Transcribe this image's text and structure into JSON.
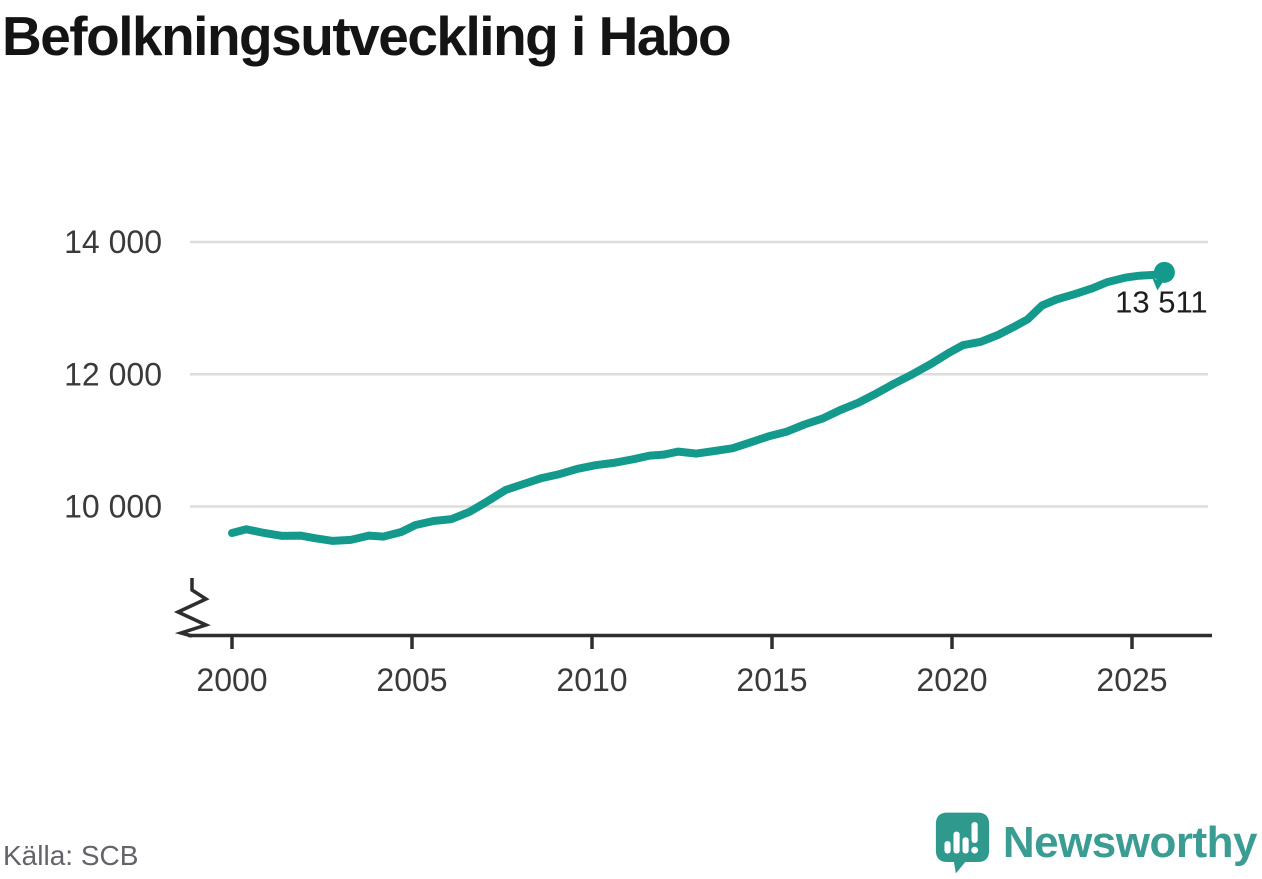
{
  "header": {
    "title": "Befolkningsutveckling i Habo"
  },
  "chart_data": {
    "type": "line",
    "title": "Befolkningsutveckling i Habo",
    "xlabel": "",
    "ylabel": "",
    "x_range": [
      1999.6,
      2027
    ],
    "ylim": [
      9300,
      14350
    ],
    "axis_break": true,
    "grid": "horizontal",
    "legend_position": "none",
    "yticks": [
      {
        "value": 14000,
        "label": "14 000"
      },
      {
        "value": 12000,
        "label": "12 000"
      },
      {
        "value": 10000,
        "label": "10 000"
      }
    ],
    "xticks": [
      {
        "value": 2000,
        "label": "2000"
      },
      {
        "value": 2005,
        "label": "2005"
      },
      {
        "value": 2010,
        "label": "2010"
      },
      {
        "value": 2015,
        "label": "2015"
      },
      {
        "value": 2020,
        "label": "2020"
      },
      {
        "value": 2025,
        "label": "2025"
      }
    ],
    "series": [
      {
        "name": "Befolkning i Habo",
        "points": [
          [
            2000.0,
            9600
          ],
          [
            2000.4,
            9655
          ],
          [
            2000.9,
            9600
          ],
          [
            2001.4,
            9555
          ],
          [
            2001.9,
            9560
          ],
          [
            2002.3,
            9520
          ],
          [
            2002.8,
            9480
          ],
          [
            2003.3,
            9495
          ],
          [
            2003.8,
            9560
          ],
          [
            2004.2,
            9545
          ],
          [
            2004.7,
            9615
          ],
          [
            2005.1,
            9720
          ],
          [
            2005.6,
            9780
          ],
          [
            2006.1,
            9810
          ],
          [
            2006.6,
            9920
          ],
          [
            2007.1,
            10080
          ],
          [
            2007.6,
            10250
          ],
          [
            2008.1,
            10340
          ],
          [
            2008.6,
            10430
          ],
          [
            2009.1,
            10490
          ],
          [
            2009.6,
            10570
          ],
          [
            2010.1,
            10625
          ],
          [
            2010.6,
            10660
          ],
          [
            2011.1,
            10710
          ],
          [
            2011.6,
            10770
          ],
          [
            2012.0,
            10785
          ],
          [
            2012.4,
            10830
          ],
          [
            2012.9,
            10800
          ],
          [
            2013.4,
            10840
          ],
          [
            2013.9,
            10880
          ],
          [
            2014.4,
            10970
          ],
          [
            2014.9,
            11060
          ],
          [
            2015.4,
            11130
          ],
          [
            2015.9,
            11240
          ],
          [
            2016.4,
            11330
          ],
          [
            2016.9,
            11460
          ],
          [
            2017.4,
            11570
          ],
          [
            2017.9,
            11710
          ],
          [
            2018.4,
            11860
          ],
          [
            2018.9,
            12000
          ],
          [
            2019.4,
            12150
          ],
          [
            2019.9,
            12320
          ],
          [
            2020.3,
            12440
          ],
          [
            2020.8,
            12490
          ],
          [
            2021.3,
            12600
          ],
          [
            2021.8,
            12740
          ],
          [
            2022.1,
            12830
          ],
          [
            2022.5,
            13040
          ],
          [
            2022.9,
            13130
          ],
          [
            2023.4,
            13210
          ],
          [
            2023.9,
            13300
          ],
          [
            2024.3,
            13390
          ],
          [
            2024.8,
            13460
          ],
          [
            2025.2,
            13490
          ],
          [
            2025.9,
            13511
          ]
        ]
      }
    ],
    "end_value": 13511,
    "end_label": "13 511",
    "colors": {
      "line": "#149a8c",
      "grid": "#dddddd",
      "axis": "#2e2e2e",
      "tick_label": "#3a3a3a",
      "end_label": "#1d1d1d"
    }
  },
  "footer": {
    "source": "Källa: SCB"
  },
  "logo": {
    "text": "Newsworthy",
    "icon": "newsworthy-speech-bubble-bar-chart-icon",
    "color": "#3b9c93"
  }
}
